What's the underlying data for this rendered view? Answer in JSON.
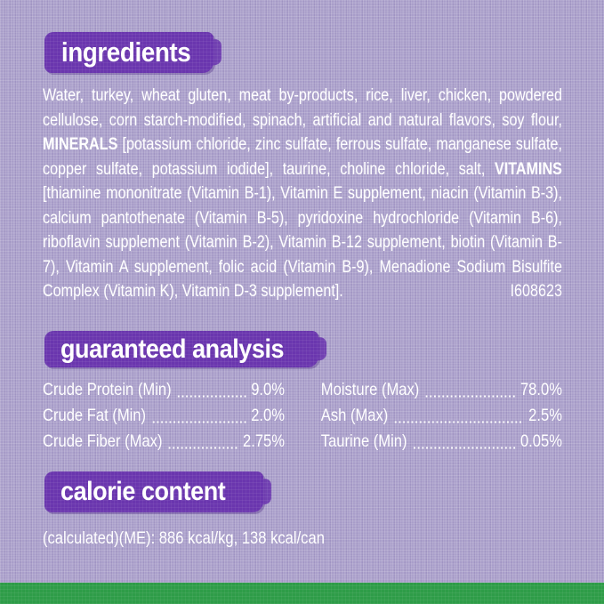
{
  "palette": {
    "background_lavender": "#a89dc9",
    "header_purple": "#6a36ae",
    "green_bar": "#2e9c48",
    "text_white": "#ffffff"
  },
  "sections": {
    "ingredients": {
      "title": "ingredients"
    },
    "guaranteed_analysis": {
      "title": "guaranteed analysis"
    },
    "calorie_content": {
      "title": "calorie content"
    }
  },
  "ingredients": {
    "segments": [
      {
        "text": "Water, turkey, wheat gluten, meat by-products, rice, liver, chicken, powdered cellulose, corn starch-modified, spinach, artificial and natural flavors, soy flour, ",
        "bold": false
      },
      {
        "text": "MINERALS",
        "bold": true
      },
      {
        "text": " [potassium chloride, zinc sulfate, ferrous sulfate, manganese sulfate, copper sulfate, potassium iodide], taurine, choline chloride, salt, ",
        "bold": false
      },
      {
        "text": "VITAMINS",
        "bold": true
      },
      {
        "text": " [thiamine mononitrate (Vitamin B-1), Vitamin E supplement, niacin (Vitamin B-3), calcium pantothenate (Vitamin B-5), pyridoxine hydrochloride (Vitamin B-6), riboflavin supplement (Vitamin B-2), Vitamin B-12 supplement, biotin (Vitamin B-7), Vitamin A supplement, folic acid (Vitamin B-9), Menadione Sodium Bisulfite Complex (Vitamin K), Vitamin D-3 supplement].",
        "bold": false
      }
    ],
    "item_code": "I608623"
  },
  "guaranteed_analysis": {
    "left": [
      {
        "label": "Crude Protein (Min)",
        "value": "9.0%"
      },
      {
        "label": "Crude Fat (Min)",
        "value": "2.0%"
      },
      {
        "label": "Crude Fiber (Max)",
        "value": "2.75%"
      }
    ],
    "right": [
      {
        "label": "Moisture (Max)",
        "value": "78.0%"
      },
      {
        "label": "Ash (Max)",
        "value": "2.5%"
      },
      {
        "label": "Taurine (Min)",
        "value": "0.05%"
      }
    ]
  },
  "calorie_content": {
    "line": "(calculated)(ME): 886 kcal/kg, 138 kcal/can"
  }
}
